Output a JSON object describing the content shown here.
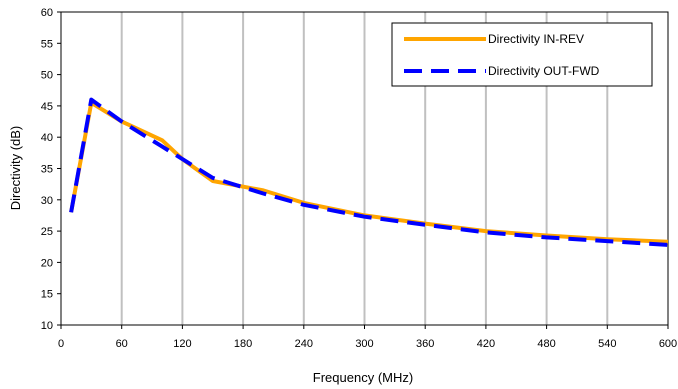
{
  "chart_data": {
    "type": "line",
    "xlabel": "Frequency (MHz)",
    "ylabel": "Directivity (dB)",
    "xlim": [
      0,
      600
    ],
    "ylim": [
      10,
      60
    ],
    "x_ticks": [
      0,
      60,
      120,
      180,
      240,
      300,
      360,
      420,
      480,
      540,
      600
    ],
    "y_ticks": [
      10,
      15,
      20,
      25,
      30,
      35,
      40,
      45,
      50,
      55,
      60
    ],
    "x_tick_labels": [
      "0",
      "60",
      "120",
      "180",
      "240",
      "300",
      "360",
      "420",
      "480",
      "540",
      "600"
    ],
    "y_tick_labels": [
      "10",
      "15",
      "20",
      "25",
      "30",
      "35",
      "40",
      "45",
      "50",
      "55",
      "60"
    ],
    "grid": "vertical",
    "legend_position": "top-right",
    "series": [
      {
        "name": "Directivity IN-REV",
        "color": "#ffa500",
        "style": "solid",
        "points": [
          [
            10,
            28
          ],
          [
            30,
            45.5
          ],
          [
            60,
            42.5
          ],
          [
            100,
            39.5
          ],
          [
            120,
            36.5
          ],
          [
            150,
            33
          ],
          [
            200,
            31.5
          ],
          [
            240,
            29.5
          ],
          [
            300,
            27.5
          ],
          [
            360,
            26.2
          ],
          [
            420,
            25
          ],
          [
            480,
            24.3
          ],
          [
            540,
            23.7
          ],
          [
            600,
            23.3
          ]
        ]
      },
      {
        "name": "Directivity OUT-FWD",
        "color": "#0000ff",
        "style": "dashed",
        "points": [
          [
            10,
            28
          ],
          [
            30,
            46
          ],
          [
            60,
            42.5
          ],
          [
            100,
            38.5
          ],
          [
            120,
            36.5
          ],
          [
            150,
            33.5
          ],
          [
            200,
            31
          ],
          [
            240,
            29.2
          ],
          [
            300,
            27.3
          ],
          [
            360,
            26
          ],
          [
            420,
            24.8
          ],
          [
            480,
            24
          ],
          [
            540,
            23.4
          ],
          [
            600,
            22.8
          ]
        ]
      }
    ]
  }
}
